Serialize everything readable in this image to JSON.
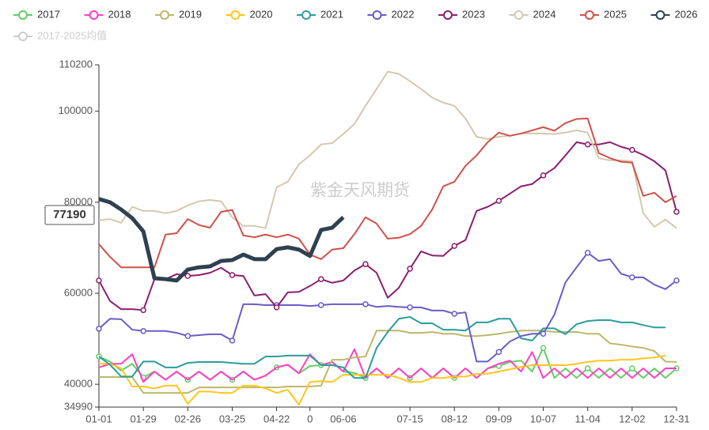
{
  "chart_data": {
    "type": "line",
    "watermark": "紫金天风期货",
    "categories": [
      "01-01",
      null,
      null,
      null,
      "01-29",
      null,
      null,
      null,
      "02-26",
      null,
      null,
      null,
      "03-25",
      null,
      null,
      null,
      "04-22",
      null,
      null,
      "0",
      null,
      null,
      "06-06",
      null,
      null,
      null,
      null,
      null,
      "07-15",
      null,
      null,
      null,
      "08-12",
      null,
      null,
      null,
      "09-09",
      null,
      null,
      null,
      "10-07",
      null,
      null,
      null,
      "11-04",
      null,
      null,
      null,
      "12-02",
      null,
      null,
      null,
      "12-31"
    ],
    "ylim": [
      34990,
      110200
    ],
    "yticks": [
      34990,
      40000,
      60000,
      80000,
      100000,
      110200
    ],
    "y_pointer": 77190,
    "symbol_every": 4,
    "legend_inactive": [
      "2017-2025均值"
    ],
    "series": [
      {
        "name": "2017",
        "color": "#66cc66",
        "symbols": true,
        "values": [
          46100,
          45000,
          43000,
          44500,
          41500,
          42800,
          41000,
          42800,
          41000,
          42800,
          41000,
          42800,
          41000,
          42800,
          41000,
          41900,
          43700,
          44300,
          42400,
          44000,
          44200,
          44900,
          42800,
          42500,
          41400,
          43500,
          41400,
          43500,
          41400,
          43500,
          41400,
          43500,
          41400,
          43500,
          41400,
          43500,
          44000,
          44900,
          45200,
          42800,
          48000,
          41400,
          43500,
          41400,
          43500,
          41400,
          43500,
          41400,
          43500,
          41400,
          43500,
          41400,
          43500
        ]
      },
      {
        "name": "2018",
        "color": "#ff3ec8",
        "values": [
          43700,
          44500,
          44500,
          46600,
          40500,
          42800,
          41000,
          42800,
          41000,
          42800,
          41000,
          42800,
          41000,
          42800,
          41000,
          41900,
          43700,
          44300,
          42400,
          46600,
          44200,
          44900,
          42800,
          47700,
          41400,
          43500,
          41400,
          43500,
          41400,
          43500,
          41400,
          43500,
          41400,
          43500,
          41400,
          43500,
          44500,
          45200,
          42800,
          47100,
          41400,
          43500,
          41400,
          43500,
          41400,
          43500,
          41400,
          43500,
          41400,
          43500,
          41400,
          43500,
          43500
        ]
      },
      {
        "name": "2019",
        "color": "#bdb76b",
        "values": [
          41600,
          41600,
          41600,
          41600,
          38100,
          38100,
          38100,
          38100,
          38100,
          39300,
          39300,
          39300,
          39300,
          39300,
          39300,
          39300,
          39300,
          39500,
          39500,
          39500,
          39700,
          45400,
          45400,
          45900,
          46100,
          51800,
          51800,
          51800,
          51300,
          51300,
          51500,
          51100,
          51100,
          50600,
          50600,
          50800,
          51100,
          51500,
          51800,
          51800,
          51800,
          51500,
          51500,
          51500,
          51100,
          51100,
          49000,
          48700,
          48300,
          48000,
          47300,
          45000,
          44900
        ]
      },
      {
        "name": "2020",
        "color": "#ffc61a",
        "values": [
          44500,
          44500,
          43500,
          39500,
          39500,
          39100,
          39700,
          39700,
          35700,
          38400,
          38400,
          38100,
          38100,
          39700,
          39700,
          39100,
          38100,
          38800,
          35500,
          40500,
          40700,
          40500,
          42100,
          42100,
          42100,
          42100,
          42100,
          41400,
          40500,
          40500,
          41400,
          41400,
          41700,
          41700,
          42300,
          42300,
          42800,
          43300,
          43800,
          44200,
          44200,
          44200,
          44200,
          44500,
          44900,
          45200,
          45200,
          45400,
          45400,
          45700,
          45900,
          46300,
          null
        ]
      },
      {
        "name": "2021",
        "color": "#2a9d9a",
        "values": [
          46100,
          44300,
          41700,
          41700,
          45000,
          45000,
          43700,
          43700,
          44700,
          44900,
          44900,
          44900,
          44700,
          44500,
          44500,
          46100,
          46100,
          46300,
          46300,
          46300,
          44200,
          44200,
          43700,
          41400,
          41400,
          48000,
          51500,
          54400,
          54800,
          53400,
          53400,
          52000,
          52000,
          51800,
          53600,
          53600,
          54400,
          54400,
          50100,
          49600,
          52300,
          52300,
          51000,
          53200,
          53900,
          54100,
          54100,
          53600,
          53600,
          53000,
          52500,
          52500,
          null
        ]
      },
      {
        "name": "2022",
        "color": "#6b5bc8",
        "symbols": true,
        "values": [
          52200,
          54400,
          54300,
          52000,
          51700,
          51700,
          51700,
          51300,
          50600,
          50800,
          51000,
          51000,
          49600,
          57600,
          57600,
          57400,
          57400,
          57400,
          57400,
          57200,
          57400,
          57600,
          57600,
          57600,
          57600,
          57000,
          57200,
          57000,
          56900,
          56900,
          56200,
          56200,
          55500,
          55800,
          45000,
          45000,
          47100,
          49400,
          50600,
          51100,
          51100,
          55300,
          62400,
          65700,
          68900,
          67100,
          67500,
          64300,
          63500,
          63500,
          61900,
          60900,
          62800
        ]
      },
      {
        "name": "2023",
        "color": "#8b1f6e",
        "symbols": true,
        "values": [
          62800,
          58300,
          56500,
          56500,
          56300,
          63100,
          63100,
          64200,
          63800,
          64000,
          64500,
          65600,
          64000,
          63800,
          59500,
          59800,
          56900,
          60200,
          60300,
          61600,
          63100,
          62300,
          62800,
          65000,
          66400,
          64500,
          59000,
          61200,
          65400,
          69200,
          68300,
          68200,
          70400,
          71700,
          78100,
          79000,
          80300,
          81900,
          83500,
          84000,
          85900,
          87500,
          90300,
          93200,
          92700,
          92700,
          93200,
          92200,
          91500,
          90400,
          89000,
          87000,
          77900
        ]
      },
      {
        "name": "2024",
        "color": "#d4c8b0",
        "values": [
          76000,
          76300,
          75500,
          79000,
          78100,
          78100,
          77600,
          78100,
          79300,
          80200,
          80500,
          80200,
          76700,
          74800,
          74800,
          74300,
          83300,
          84500,
          88300,
          90300,
          92700,
          93000,
          95000,
          97200,
          101200,
          104900,
          108700,
          108200,
          106600,
          104900,
          103000,
          101900,
          101200,
          98400,
          94400,
          93900,
          94400,
          94600,
          95100,
          95100,
          95100,
          95000,
          95300,
          95800,
          95300,
          89700,
          89200,
          89200,
          89000,
          77600,
          74600,
          76200,
          74300
        ]
      },
      {
        "name": "2025",
        "color": "#d0504a",
        "values": [
          70800,
          68000,
          65700,
          65700,
          65700,
          65700,
          72900,
          73200,
          76300,
          75000,
          74400,
          77900,
          78300,
          72700,
          72300,
          72900,
          72300,
          72900,
          72000,
          68500,
          67500,
          69600,
          69900,
          73000,
          76700,
          75300,
          72000,
          72200,
          73000,
          74800,
          78400,
          83500,
          84500,
          88000,
          90300,
          93200,
          95300,
          94600,
          95100,
          95800,
          96500,
          95700,
          97400,
          98300,
          98400,
          90800,
          89700,
          88900,
          88700,
          81400,
          82100,
          80000,
          81400
        ]
      },
      {
        "name": "2026",
        "color": "#2f4050",
        "width": 5,
        "values": [
          80700,
          80000,
          78400,
          76500,
          73600,
          63300,
          63100,
          62800,
          65200,
          65700,
          65900,
          67100,
          67300,
          68500,
          67500,
          67500,
          69700,
          70100,
          69600,
          68200,
          73900,
          74400,
          76700,
          null,
          null,
          null,
          null,
          null,
          null,
          null,
          null,
          null,
          null,
          null,
          null,
          null,
          null,
          null,
          null,
          null,
          null,
          null,
          null,
          null,
          null,
          null,
          null,
          null,
          null,
          null,
          null,
          null,
          null
        ]
      }
    ]
  }
}
